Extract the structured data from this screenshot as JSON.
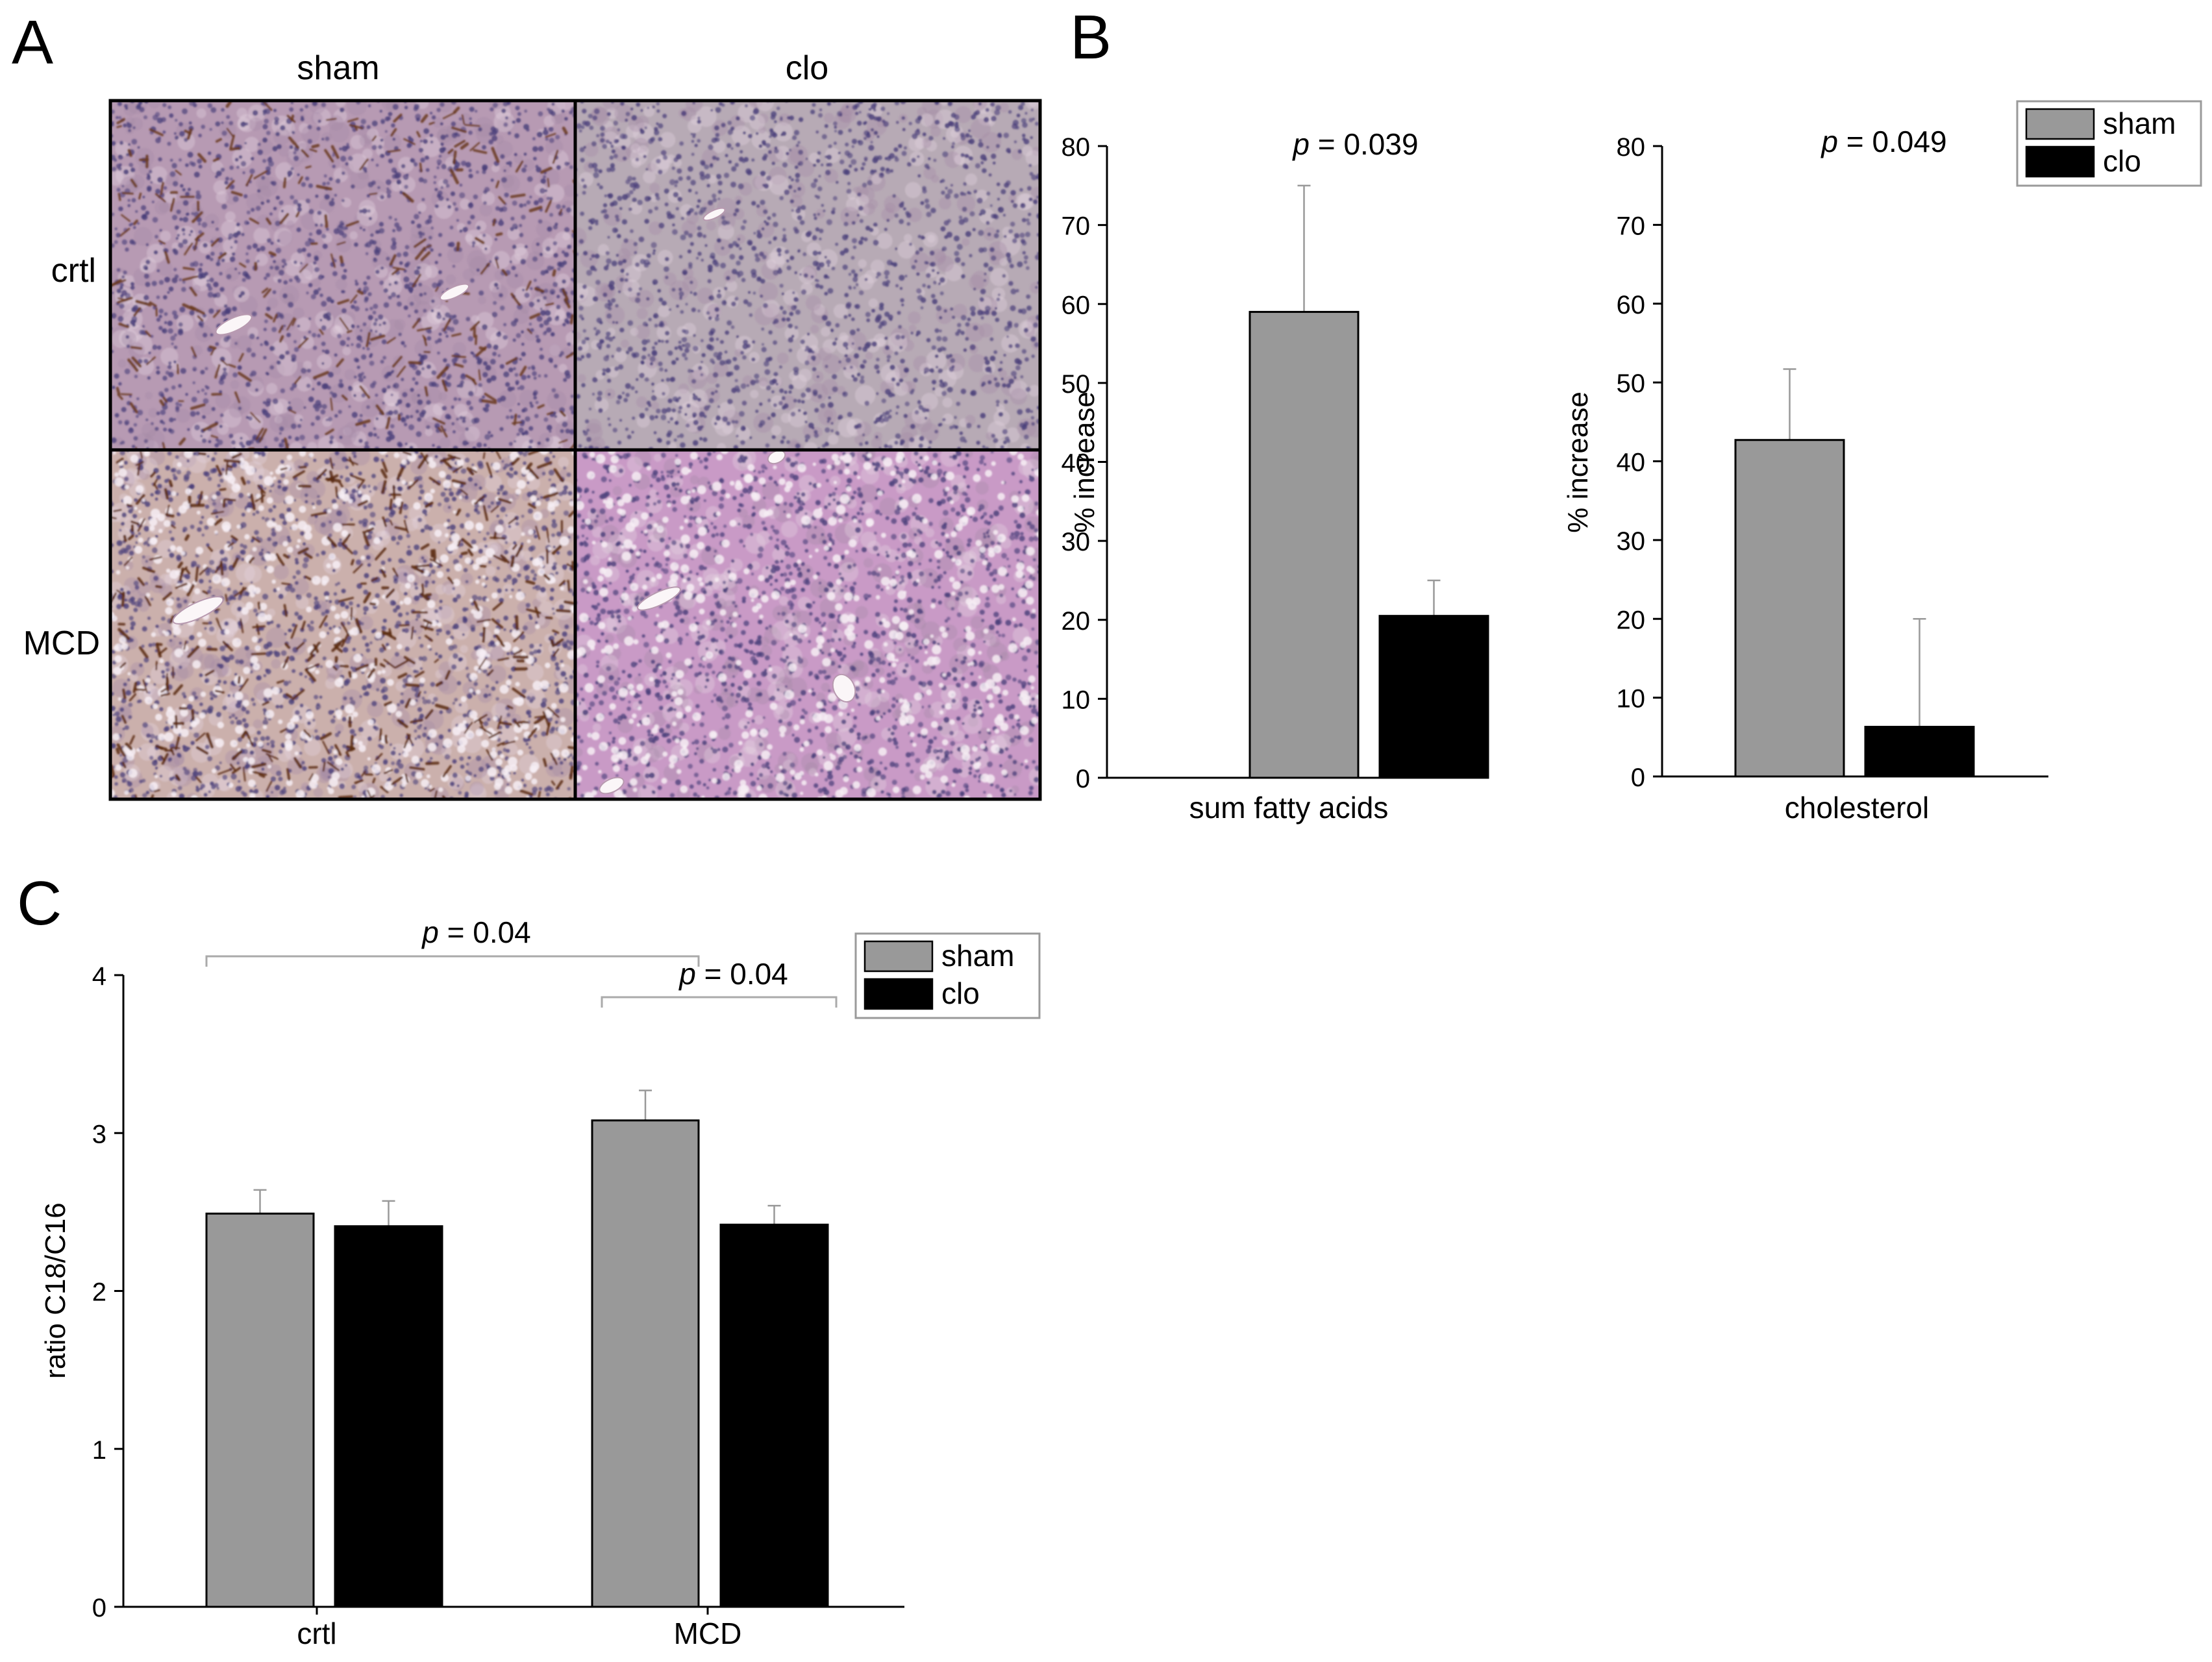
{
  "panels": {
    "A": {
      "letter": "A",
      "col_labels": [
        "sham",
        "clo"
      ],
      "row_labels": [
        "crtl",
        "MCD"
      ]
    },
    "B": {
      "letter": "B"
    },
    "C": {
      "letter": "C"
    }
  },
  "colors": {
    "sham": "#999999",
    "clo": "#000000",
    "axis": "#000000",
    "bracket": "#aaaaaa",
    "border": "#9a9a9a"
  },
  "tissue": {
    "crtl_sham": {
      "base": "#b79ab3",
      "brown": "#6a3a1e",
      "level": "moderate"
    },
    "crtl_clo": {
      "base": "#b7aab5",
      "brown": "#7a5030",
      "level": "none"
    },
    "MCD_sham": {
      "base": "#cbb0ac",
      "brown": "#5a2a10",
      "level": "high"
    },
    "MCD_clo": {
      "base": "#c99ac6",
      "brown": "#7a5030",
      "level": "none"
    }
  },
  "chart_data": [
    {
      "id": "B-left",
      "type": "bar",
      "categories": [
        "sum fatty acids"
      ],
      "xlabel": "sum fatty acids",
      "ylabel": "% increase",
      "ylim": [
        0,
        80
      ],
      "yticks": [
        0,
        10,
        20,
        30,
        40,
        50,
        60,
        70,
        80
      ],
      "series": [
        {
          "name": "sham",
          "values": [
            59
          ],
          "error": [
            16
          ]
        },
        {
          "name": "clo",
          "values": [
            20.5
          ],
          "error": [
            4.5
          ]
        }
      ],
      "annotation": {
        "p_label": "p",
        "text": " = 0.039"
      }
    },
    {
      "id": "B-right",
      "type": "bar",
      "categories": [
        "cholesterol"
      ],
      "xlabel": "cholesterol",
      "ylabel": "% increase",
      "ylim": [
        0,
        80
      ],
      "yticks": [
        0,
        10,
        20,
        30,
        40,
        50,
        60,
        70,
        80
      ],
      "series": [
        {
          "name": "sham",
          "values": [
            42.7
          ],
          "error": [
            9
          ]
        },
        {
          "name": "clo",
          "values": [
            6.3
          ],
          "error": [
            13.7
          ]
        }
      ],
      "annotation": {
        "p_label": "p",
        "text": " = 0.049"
      },
      "legend": {
        "position": "top-right",
        "entries": [
          "sham",
          "clo"
        ]
      }
    },
    {
      "id": "C",
      "type": "bar",
      "categories": [
        "crtl",
        "MCD"
      ],
      "xlabel": "",
      "ylabel": "ratio C18/C16",
      "ylim": [
        0,
        4
      ],
      "yticks": [
        0,
        1,
        2,
        3,
        4
      ],
      "series": [
        {
          "name": "sham",
          "values": [
            2.49,
            3.08
          ],
          "error": [
            0.15,
            0.19
          ]
        },
        {
          "name": "clo",
          "values": [
            2.41,
            2.42
          ],
          "error": [
            0.16,
            0.12
          ]
        }
      ],
      "brackets": [
        {
          "from": "crtl.sham",
          "to": "MCD.sham",
          "p_label": "p",
          "text": " = 0.04"
        },
        {
          "from": "MCD.sham",
          "to": "MCD.clo",
          "p_label": "p",
          "text": " = 0.04"
        }
      ],
      "legend": {
        "position": "top-right",
        "entries": [
          "sham",
          "clo"
        ]
      }
    }
  ]
}
